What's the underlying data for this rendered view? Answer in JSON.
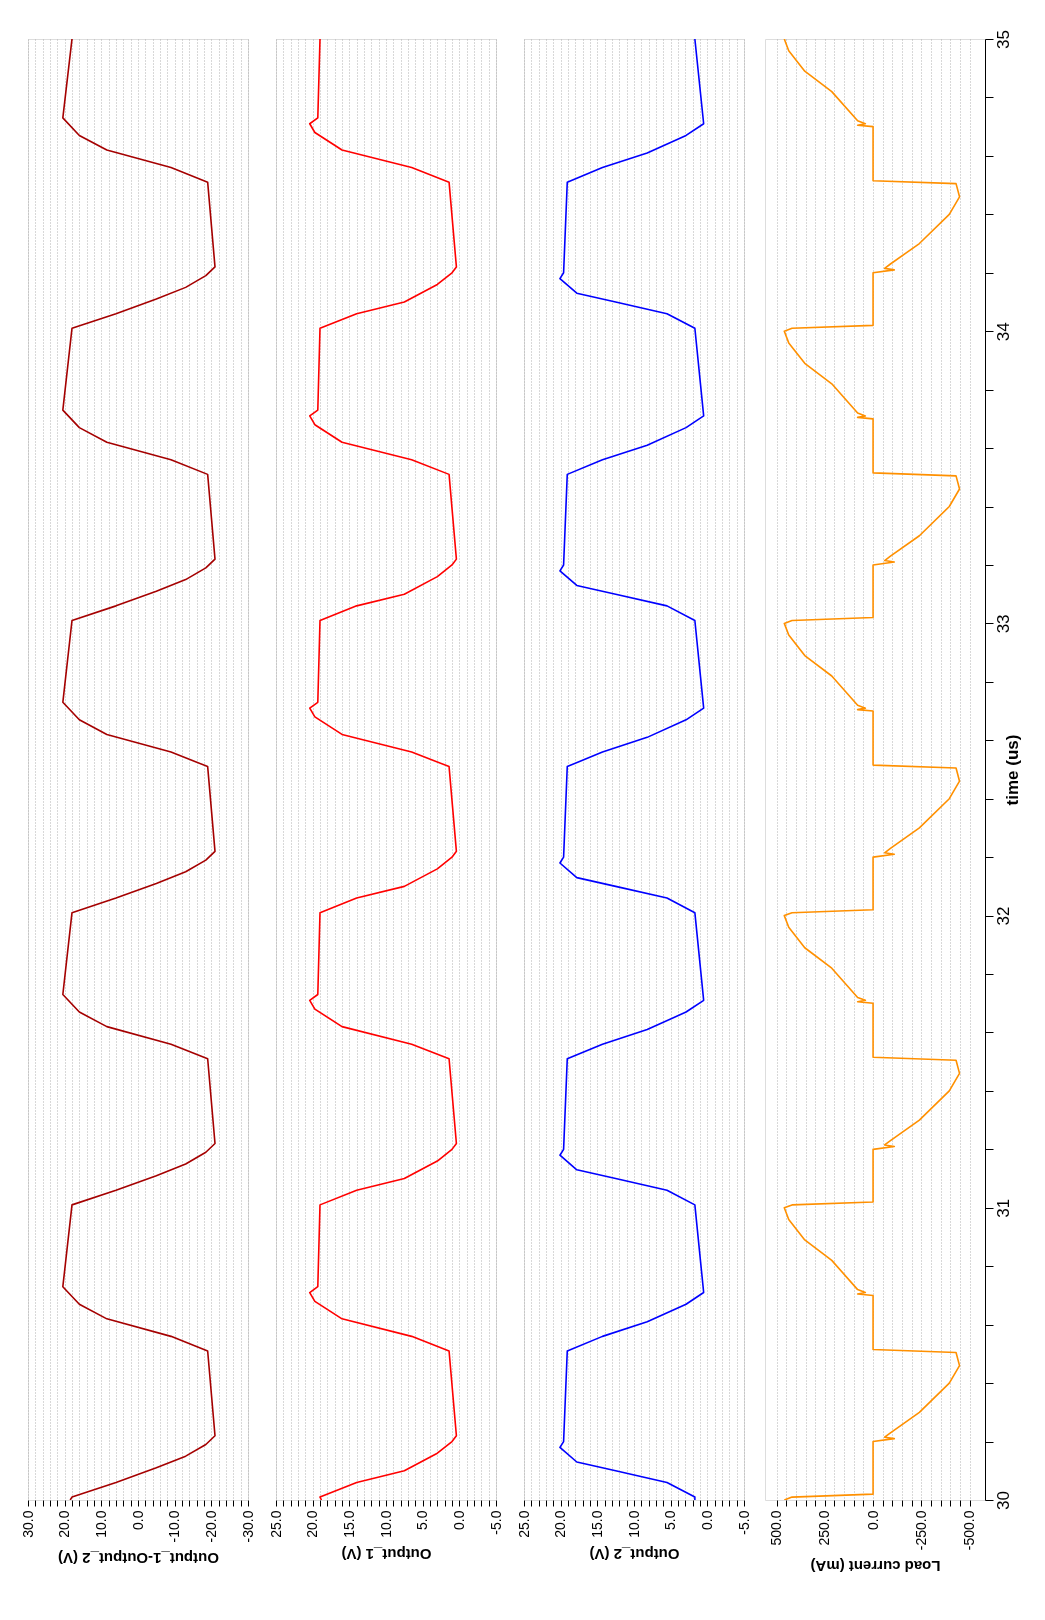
{
  "chart_data": [
    {
      "type": "line",
      "xlabel": "Output_1-Output_2 (V)",
      "ylim": [
        30,
        35
      ],
      "xlim": [
        30,
        -30
      ],
      "tick_labels": "x",
      "grid": "x",
      "xticks": [
        {
          "value": 30,
          "label": "30.0"
        },
        {
          "value": 28,
          "label": null
        },
        {
          "value": 26,
          "label": null
        },
        {
          "value": 24,
          "label": null
        },
        {
          "value": 22,
          "label": null
        },
        {
          "value": 20,
          "label": "20.0"
        },
        {
          "value": 18,
          "label": null
        },
        {
          "value": 16,
          "label": null
        },
        {
          "value": 14,
          "label": null
        },
        {
          "value": 12,
          "label": null
        },
        {
          "value": 10,
          "label": "10.0"
        },
        {
          "value": 8,
          "label": null
        },
        {
          "value": 6,
          "label": null
        },
        {
          "value": 4,
          "label": null
        },
        {
          "value": 2,
          "label": null
        },
        {
          "value": 0,
          "label": "0.0"
        },
        {
          "value": -2,
          "label": null
        },
        {
          "value": -4,
          "label": null
        },
        {
          "value": -6,
          "label": null
        },
        {
          "value": -8,
          "label": null
        },
        {
          "value": -10,
          "label": "-10.0"
        },
        {
          "value": -12,
          "label": null
        },
        {
          "value": -14,
          "label": null
        },
        {
          "value": -16,
          "label": null
        },
        {
          "value": -18,
          "label": null
        },
        {
          "value": -20,
          "label": "-20.0"
        },
        {
          "value": -22,
          "label": null
        },
        {
          "value": -24,
          "label": null
        },
        {
          "value": -26,
          "label": null
        },
        {
          "value": -28,
          "label": null
        },
        {
          "value": -30,
          "label": "-30.0"
        }
      ],
      "x": [
        18.5,
        18,
        6,
        -5,
        -13,
        -18.5,
        -21,
        -19,
        -9,
        8.5,
        16,
        20.5,
        18,
        6,
        -5,
        -13,
        -18.5,
        -21,
        -19,
        -9,
        8.5,
        16,
        20.5,
        18,
        6,
        -5,
        -13,
        -18.5,
        -21,
        -19,
        -9,
        8.5,
        16,
        20.5,
        18,
        6,
        -5,
        -13,
        -18.5,
        -21,
        -19,
        -9,
        8.5,
        16,
        20.5,
        18,
        6,
        -5,
        -13,
        -18.5,
        -21,
        -19,
        -9,
        8.5,
        16,
        20.5,
        18
      ],
      "series": [
        {
          "color": "#a50000",
          "values": [
            30,
            30.01,
            30.06,
            30.11,
            30.15,
            30.19,
            30.22,
            30.51,
            30.56,
            30.62,
            30.67,
            30.73,
            31.01,
            31.06,
            31.11,
            31.15,
            31.19,
            31.22,
            31.51,
            31.56,
            31.62,
            31.67,
            31.73,
            32.01,
            32.06,
            32.11,
            32.15,
            32.19,
            32.22,
            32.51,
            32.56,
            32.62,
            32.67,
            32.73,
            33.01,
            33.06,
            33.11,
            33.15,
            33.19,
            33.22,
            33.51,
            33.56,
            33.62,
            33.67,
            33.73,
            34.01,
            34.06,
            34.11,
            34.15,
            34.19,
            34.22,
            34.51,
            34.56,
            34.62,
            34.67,
            34.73,
            35
          ]
        }
      ]
    },
    {
      "type": "line",
      "xlabel": "Output_1 (V)",
      "ylim": [
        30,
        35
      ],
      "xlim": [
        25,
        -5
      ],
      "tick_labels": "x",
      "grid": "x",
      "xticks": [
        {
          "value": 25,
          "label": "25.0"
        },
        {
          "value": 24,
          "label": null
        },
        {
          "value": 23,
          "label": null
        },
        {
          "value": 22,
          "label": null
        },
        {
          "value": 21,
          "label": null
        },
        {
          "value": 20,
          "label": "20.0"
        },
        {
          "value": 19,
          "label": null
        },
        {
          "value": 18,
          "label": null
        },
        {
          "value": 17,
          "label": null
        },
        {
          "value": 16,
          "label": null
        },
        {
          "value": 15,
          "label": "15.0"
        },
        {
          "value": 14,
          "label": null
        },
        {
          "value": 13,
          "label": null
        },
        {
          "value": 12,
          "label": null
        },
        {
          "value": 11,
          "label": null
        },
        {
          "value": 10,
          "label": "10.0"
        },
        {
          "value": 9,
          "label": null
        },
        {
          "value": 8,
          "label": null
        },
        {
          "value": 7,
          "label": null
        },
        {
          "value": 6,
          "label": null
        },
        {
          "value": 5,
          "label": "5.0"
        },
        {
          "value": 4,
          "label": null
        },
        {
          "value": 3,
          "label": null
        },
        {
          "value": 2,
          "label": null
        },
        {
          "value": 1,
          "label": null
        },
        {
          "value": 0,
          "label": "0.0"
        },
        {
          "value": -1,
          "label": null
        },
        {
          "value": -2,
          "label": null
        },
        {
          "value": -3,
          "label": null
        },
        {
          "value": -4,
          "label": null
        },
        {
          "value": -5,
          "label": "-5.0"
        }
      ],
      "x": [
        18.8,
        19,
        14,
        7.5,
        3,
        1,
        0.4,
        1.4,
        6.5,
        16,
        19.7,
        20.4,
        19.3,
        19,
        14,
        7.5,
        3,
        1,
        0.4,
        1.4,
        6.5,
        16,
        19.7,
        20.4,
        19.3,
        19,
        14,
        7.5,
        3,
        1,
        0.4,
        1.4,
        6.5,
        16,
        19.7,
        20.4,
        19.3,
        19,
        14,
        7.5,
        3,
        1,
        0.4,
        1.4,
        6.5,
        16,
        19.7,
        20.4,
        19.3,
        19,
        14,
        7.5,
        3,
        1,
        0.4,
        1.4,
        6.5,
        16,
        19.7,
        20.4,
        19.3,
        19
      ],
      "series": [
        {
          "color": "#ff0000",
          "values": [
            30,
            30.01,
            30.06,
            30.1,
            30.16,
            30.2,
            30.22,
            30.51,
            30.56,
            30.62,
            30.68,
            30.71,
            30.73,
            31.01,
            31.06,
            31.1,
            31.16,
            31.2,
            31.22,
            31.51,
            31.56,
            31.62,
            31.68,
            31.71,
            31.73,
            32.01,
            32.06,
            32.1,
            32.16,
            32.2,
            32.22,
            32.51,
            32.56,
            32.62,
            32.68,
            32.71,
            32.73,
            33.01,
            33.06,
            33.1,
            33.16,
            33.2,
            33.22,
            33.51,
            33.56,
            33.62,
            33.68,
            33.71,
            33.73,
            34.01,
            34.06,
            34.1,
            34.16,
            34.2,
            34.22,
            34.51,
            34.56,
            34.62,
            34.68,
            34.71,
            34.73,
            35
          ]
        }
      ]
    },
    {
      "type": "line",
      "xlabel": "Output_2 (V)",
      "ylim": [
        30,
        35
      ],
      "xlim": [
        25,
        -5
      ],
      "tick_labels": "x",
      "grid": "x",
      "xticks": [
        {
          "value": 25,
          "label": "25.0"
        },
        {
          "value": 24,
          "label": null
        },
        {
          "value": 23,
          "label": null
        },
        {
          "value": 22,
          "label": null
        },
        {
          "value": 21,
          "label": null
        },
        {
          "value": 20,
          "label": "20.0"
        },
        {
          "value": 19,
          "label": null
        },
        {
          "value": 18,
          "label": null
        },
        {
          "value": 17,
          "label": null
        },
        {
          "value": 16,
          "label": null
        },
        {
          "value": 15,
          "label": "15.0"
        },
        {
          "value": 14,
          "label": null
        },
        {
          "value": 13,
          "label": null
        },
        {
          "value": 12,
          "label": null
        },
        {
          "value": 11,
          "label": null
        },
        {
          "value": 10,
          "label": "10.0"
        },
        {
          "value": 9,
          "label": null
        },
        {
          "value": 8,
          "label": null
        },
        {
          "value": 7,
          "label": null
        },
        {
          "value": 6,
          "label": null
        },
        {
          "value": 5,
          "label": "5.0"
        },
        {
          "value": 4,
          "label": null
        },
        {
          "value": 3,
          "label": null
        },
        {
          "value": 2,
          "label": null
        },
        {
          "value": 1,
          "label": null
        },
        {
          "value": 0,
          "label": "0.0"
        },
        {
          "value": -1,
          "label": null
        },
        {
          "value": -2,
          "label": null
        },
        {
          "value": -3,
          "label": null
        },
        {
          "value": -4,
          "label": null
        },
        {
          "value": -5,
          "label": "-5.0"
        }
      ],
      "x": [
        1.7,
        1.7,
        5.5,
        12.5,
        17.8,
        20.1,
        19.6,
        19.1,
        14.3,
        8.2,
        2.9,
        0.5,
        1.7,
        5.5,
        12.5,
        17.8,
        20.1,
        19.6,
        19.1,
        14.3,
        8.2,
        2.9,
        0.5,
        1.7,
        5.5,
        12.5,
        17.8,
        20.1,
        19.6,
        19.1,
        14.3,
        8.2,
        2.9,
        0.5,
        1.7,
        5.5,
        12.5,
        17.8,
        20.1,
        19.6,
        19.1,
        14.3,
        8.2,
        2.9,
        0.5,
        1.7,
        5.5,
        12.5,
        17.8,
        20.1,
        19.6,
        19.1,
        14.3,
        8.2,
        2.9,
        0.5,
        1.7
      ],
      "series": [
        {
          "color": "#0000ff",
          "values": [
            30,
            30.01,
            30.06,
            30.1,
            30.13,
            30.18,
            30.2,
            30.51,
            30.56,
            30.61,
            30.67,
            30.71,
            31.01,
            31.06,
            31.1,
            31.13,
            31.18,
            31.2,
            31.51,
            31.56,
            31.61,
            31.67,
            31.71,
            32.01,
            32.06,
            32.1,
            32.13,
            32.18,
            32.2,
            32.51,
            32.56,
            32.61,
            32.67,
            32.71,
            33.01,
            33.06,
            33.1,
            33.13,
            33.18,
            33.2,
            33.51,
            33.56,
            33.61,
            33.67,
            33.71,
            34.01,
            34.06,
            34.1,
            34.13,
            34.18,
            34.2,
            34.51,
            34.56,
            34.61,
            34.67,
            34.71,
            35
          ]
        }
      ]
    },
    {
      "type": "line",
      "xlabel": "Load current (mA)",
      "ylabel": "time (us)",
      "ylim": [
        30,
        35
      ],
      "xlim": [
        560,
        -580
      ],
      "grid": "x",
      "yticks": [
        30,
        {
          "value": 30.2,
          "label": null
        },
        {
          "value": 30.4,
          "label": null
        },
        {
          "value": 30.6,
          "label": null
        },
        {
          "value": 30.8,
          "label": null
        },
        31,
        {
          "value": 31.2,
          "label": null
        },
        {
          "value": 31.4,
          "label": null
        },
        {
          "value": 31.6,
          "label": null
        },
        {
          "value": 31.8,
          "label": null
        },
        32,
        {
          "value": 32.2,
          "label": null
        },
        {
          "value": 32.4,
          "label": null
        },
        {
          "value": 32.6,
          "label": null
        },
        {
          "value": 32.8,
          "label": null
        },
        33,
        {
          "value": 33.2,
          "label": null
        },
        {
          "value": 33.4,
          "label": null
        },
        {
          "value": 33.6,
          "label": null
        },
        {
          "value": 33.8,
          "label": null
        },
        34,
        {
          "value": 34.2,
          "label": null
        },
        {
          "value": 34.4,
          "label": null
        },
        {
          "value": 34.6,
          "label": null
        },
        {
          "value": 34.8,
          "label": null
        },
        35
      ],
      "xticks": [
        {
          "value": 500,
          "label": "500.0"
        },
        {
          "value": 450,
          "label": null
        },
        {
          "value": 400,
          "label": null
        },
        {
          "value": 350,
          "label": null
        },
        {
          "value": 300,
          "label": null
        },
        {
          "value": 250,
          "label": "250.0"
        },
        {
          "value": 200,
          "label": null
        },
        {
          "value": 150,
          "label": null
        },
        {
          "value": 100,
          "label": null
        },
        {
          "value": 50,
          "label": null
        },
        {
          "value": 0,
          "label": "0.0"
        },
        {
          "value": -50,
          "label": null
        },
        {
          "value": -100,
          "label": null
        },
        {
          "value": -150,
          "label": null
        },
        {
          "value": -200,
          "label": null
        },
        {
          "value": -250,
          "label": "-250.0"
        },
        {
          "value": -300,
          "label": null
        },
        {
          "value": -350,
          "label": null
        },
        {
          "value": -400,
          "label": null
        },
        {
          "value": -450,
          "label": null
        },
        {
          "value": -500,
          "label": "-500.0"
        }
      ],
      "x": [
        460,
        420,
        0,
        0,
        -110,
        -60,
        -90,
        -240,
        -395,
        -448,
        -430,
        0,
        0,
        80,
        40,
        80,
        214,
        354,
        437,
        460,
        420,
        0,
        0,
        -110,
        -60,
        -90,
        -240,
        -395,
        -448,
        -430,
        0,
        0,
        80,
        40,
        80,
        214,
        354,
        437,
        460,
        420,
        0,
        0,
        -110,
        -60,
        -90,
        -240,
        -395,
        -448,
        -430,
        0,
        0,
        80,
        40,
        80,
        214,
        354,
        437,
        460,
        420,
        0,
        0,
        -110,
        -60,
        -90,
        -240,
        -395,
        -448,
        -430,
        0,
        0,
        80,
        40,
        80,
        214,
        354,
        437,
        460,
        420,
        0,
        0,
        -110,
        -60,
        -90,
        -240,
        -395,
        -448,
        -430,
        0,
        0,
        80,
        40,
        80,
        214,
        354,
        437,
        460
      ],
      "series": [
        {
          "color": "#ff9000",
          "values": [
            30,
            30.01,
            30.02,
            30.2,
            30.21,
            30.215,
            30.23,
            30.3,
            30.4,
            30.46,
            30.505,
            30.515,
            30.7,
            30.705,
            30.71,
            30.72,
            30.82,
            30.89,
            30.96,
            31,
            31.01,
            31.02,
            31.2,
            31.21,
            31.215,
            31.23,
            31.3,
            31.4,
            31.46,
            31.505,
            31.515,
            31.7,
            31.705,
            31.71,
            31.72,
            31.82,
            31.89,
            31.96,
            32,
            32.01,
            32.02,
            32.2,
            32.21,
            32.215,
            32.23,
            32.3,
            32.4,
            32.46,
            32.505,
            32.515,
            32.7,
            32.705,
            32.71,
            32.72,
            32.82,
            32.89,
            32.96,
            33,
            33.01,
            33.02,
            33.2,
            33.21,
            33.215,
            33.23,
            33.3,
            33.4,
            33.46,
            33.505,
            33.515,
            33.7,
            33.705,
            33.71,
            33.72,
            33.82,
            33.89,
            33.96,
            34,
            34.01,
            34.02,
            34.2,
            34.21,
            34.215,
            34.23,
            34.3,
            34.4,
            34.46,
            34.505,
            34.515,
            34.7,
            34.705,
            34.71,
            34.72,
            34.82,
            34.89,
            34.96,
            35
          ]
        }
      ]
    }
  ]
}
